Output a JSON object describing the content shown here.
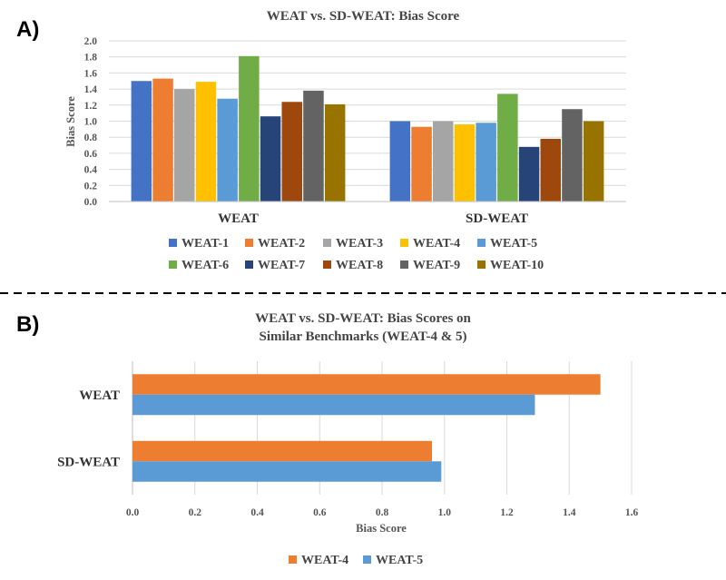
{
  "chart_data": [
    {
      "panel": "A)",
      "type": "bar",
      "title": "WEAT  vs. SD-WEAT:  Bias Score",
      "ylabel": "Bias Score",
      "xlabel": "",
      "ylim": [
        0,
        2.0
      ],
      "yticks": [
        "0.0",
        "0.2",
        "0.4",
        "0.6",
        "0.8",
        "1.0",
        "1.2",
        "1.4",
        "1.6",
        "1.8",
        "2.0"
      ],
      "categories": [
        "WEAT",
        "SD-WEAT"
      ],
      "grid": true,
      "legend": "bottom",
      "series": [
        {
          "name": "WEAT-1",
          "color": "#4472C4",
          "values": [
            1.5,
            1.0
          ]
        },
        {
          "name": "WEAT-2",
          "color": "#ED7D31",
          "values": [
            1.53,
            0.93
          ]
        },
        {
          "name": "WEAT-3",
          "color": "#A5A5A5",
          "values": [
            1.4,
            1.0
          ]
        },
        {
          "name": "WEAT-4",
          "color": "#FFC000",
          "values": [
            1.49,
            0.96
          ]
        },
        {
          "name": "WEAT-5",
          "color": "#5B9BD5",
          "values": [
            1.28,
            0.98
          ]
        },
        {
          "name": "WEAT-6",
          "color": "#70AD47",
          "values": [
            1.81,
            1.34
          ]
        },
        {
          "name": "WEAT-7",
          "color": "#264478",
          "values": [
            1.06,
            0.68
          ]
        },
        {
          "name": "WEAT-8",
          "color": "#9E480E",
          "values": [
            1.24,
            0.78
          ]
        },
        {
          "name": "WEAT-9",
          "color": "#636363",
          "values": [
            1.38,
            1.15
          ]
        },
        {
          "name": "WEAT-10",
          "color": "#997300",
          "values": [
            1.21,
            1.0
          ]
        }
      ]
    },
    {
      "panel": "B)",
      "type": "bar",
      "orientation": "horizontal",
      "title": "WEAT  vs. SD-WEAT:  Bias Scores on",
      "title2": "Similar Benchmarks (WEAT-4 & 5)",
      "xlabel": "Bias Score",
      "ylabel": "",
      "xlim": [
        0,
        1.6
      ],
      "xticks": [
        "0.0",
        "0.2",
        "0.4",
        "0.6",
        "0.8",
        "1.0",
        "1.2",
        "1.4",
        "1.6"
      ],
      "categories": [
        "WEAT",
        "SD-WEAT"
      ],
      "grid": true,
      "legend": "bottom",
      "series": [
        {
          "name": "WEAT-4",
          "color": "#ED7D31",
          "values": [
            1.5,
            0.96
          ]
        },
        {
          "name": "WEAT-5",
          "color": "#5B9BD5",
          "values": [
            1.29,
            0.99
          ]
        }
      ]
    }
  ]
}
